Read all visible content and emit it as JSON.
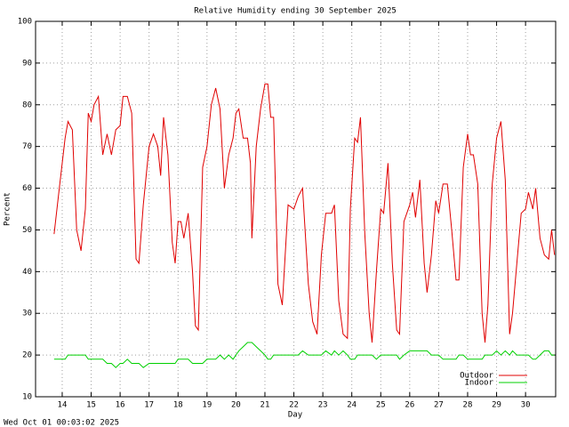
{
  "chart_data": {
    "type": "line",
    "title": "Relative Humidity ending 30 September 2025",
    "x_label": "Day",
    "y_label": "Percent",
    "timestamp": "Wed Oct 01 00:03:02 2025",
    "x": [
      13.72,
      13.9,
      14.0,
      14.1,
      14.2,
      14.35,
      14.5,
      14.65,
      14.8,
      14.9,
      15.0,
      15.1,
      15.25,
      15.4,
      15.55,
      15.7,
      15.85,
      16.0,
      16.1,
      16.25,
      16.4,
      16.55,
      16.65,
      16.8,
      17.0,
      17.15,
      17.3,
      17.4,
      17.5,
      17.65,
      17.8,
      17.9,
      18.0,
      18.1,
      18.2,
      18.35,
      18.5,
      18.6,
      18.7,
      18.85,
      19.0,
      19.15,
      19.3,
      19.45,
      19.6,
      19.75,
      19.9,
      20.0,
      20.1,
      20.25,
      20.4,
      20.5,
      20.55,
      20.7,
      20.85,
      21.0,
      21.1,
      21.2,
      21.3,
      21.45,
      21.6,
      21.8,
      22.0,
      22.15,
      22.3,
      22.5,
      22.65,
      22.8,
      22.95,
      23.1,
      23.3,
      23.4,
      23.55,
      23.7,
      23.85,
      23.95,
      24.1,
      24.2,
      24.3,
      24.45,
      24.6,
      24.7,
      24.85,
      25.0,
      25.1,
      25.25,
      25.4,
      25.55,
      25.65,
      25.8,
      26.0,
      26.1,
      26.2,
      26.35,
      26.5,
      26.6,
      26.75,
      26.9,
      27.0,
      27.15,
      27.3,
      27.45,
      27.6,
      27.7,
      27.85,
      28.0,
      28.1,
      28.2,
      28.35,
      28.5,
      28.6,
      28.7,
      28.85,
      29.0,
      29.15,
      29.3,
      29.45,
      29.55,
      29.7,
      29.85,
      30.0,
      30.1,
      30.25,
      30.35,
      30.5,
      30.65,
      30.8,
      30.9,
      31.0
    ],
    "series": [
      {
        "name": "Outdoor",
        "color": "#e00000",
        "values": [
          49,
          60,
          66,
          72,
          76,
          74,
          50,
          45,
          55,
          78,
          76,
          80,
          82,
          68,
          73,
          68,
          74,
          75,
          82,
          82,
          78,
          43,
          42,
          56,
          70,
          73,
          70,
          63,
          77,
          68,
          47,
          42,
          52,
          52,
          48,
          54,
          40,
          27,
          26,
          65,
          70,
          80,
          84,
          79,
          60,
          68,
          72,
          78,
          79,
          72,
          72,
          66,
          48,
          70,
          79,
          85,
          85,
          77,
          77,
          37,
          32,
          56,
          55,
          58,
          60,
          37,
          28,
          25,
          44,
          54,
          54,
          56,
          33,
          25,
          24,
          55,
          72,
          71,
          77,
          49,
          30,
          23,
          40,
          55,
          54,
          66,
          42,
          26,
          25,
          52,
          56,
          59,
          53,
          62,
          42,
          35,
          44,
          57,
          54,
          61,
          61,
          50,
          38,
          38,
          65,
          73,
          68,
          68,
          61,
          30,
          23,
          32,
          61,
          72,
          76,
          62,
          25,
          30,
          42,
          54,
          55,
          59,
          55,
          60,
          48,
          44,
          43,
          50,
          44
        ]
      },
      {
        "name": "Indoor",
        "color": "#00d000",
        "values": [
          19,
          19,
          19,
          19,
          20,
          20,
          20,
          20,
          20,
          19,
          19,
          19,
          19,
          19,
          18,
          18,
          17,
          18,
          18,
          19,
          18,
          18,
          18,
          17,
          18,
          18,
          18,
          18,
          18,
          18,
          18,
          18,
          19,
          19,
          19,
          19,
          18,
          18,
          18,
          18,
          19,
          19,
          19,
          20,
          19,
          20,
          19,
          20,
          21,
          22,
          23,
          23,
          23,
          22,
          21,
          20,
          19,
          19,
          20,
          20,
          20,
          20,
          20,
          20,
          21,
          20,
          20,
          20,
          20,
          21,
          20,
          21,
          20,
          21,
          20,
          19,
          19,
          20,
          20,
          20,
          20,
          20,
          19,
          20,
          20,
          20,
          20,
          20,
          19,
          20,
          21,
          21,
          21,
          21,
          21,
          21,
          20,
          20,
          20,
          19,
          19,
          19,
          19,
          20,
          20,
          19,
          19,
          19,
          19,
          19,
          20,
          20,
          20,
          21,
          20,
          21,
          20,
          21,
          20,
          20,
          20,
          20,
          19,
          19,
          20,
          21,
          21,
          20,
          20
        ]
      }
    ],
    "xlim": [
      13.08,
      31.04
    ],
    "xticks": [
      14,
      15,
      16,
      17,
      18,
      19,
      20,
      21,
      22,
      23,
      24,
      25,
      26,
      27,
      28,
      29,
      30
    ],
    "ylim": [
      10,
      100
    ],
    "yticks": [
      10,
      20,
      30,
      40,
      50,
      60,
      70,
      80,
      90,
      100
    ],
    "grid": true,
    "legend": "bottom-right"
  }
}
